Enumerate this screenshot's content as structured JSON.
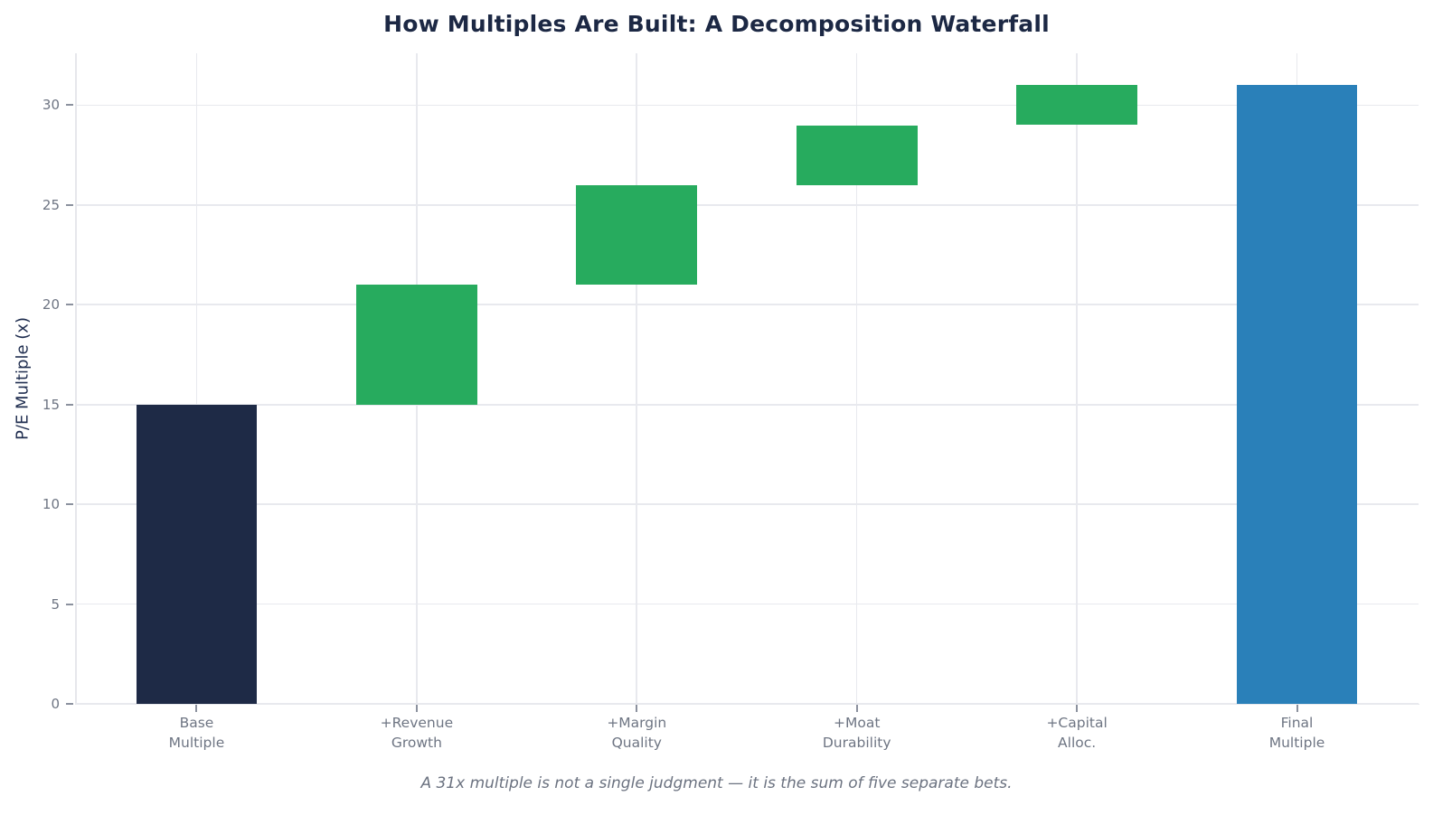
{
  "chart_data": {
    "type": "bar",
    "subtype": "waterfall",
    "title": "How Multiples Are Built: A Decomposition Waterfall",
    "ylabel": "P/E Multiple (x)",
    "xlabel": "",
    "caption": "A 31x multiple is not a single judgment — it is the sum of five separate bets.",
    "categories": [
      "Base\nMultiple",
      "+Revenue\nGrowth",
      "+Margin\nQuality",
      "+Moat\nDurability",
      "+Capital\nAlloc.",
      "Final\nMultiple"
    ],
    "bars": [
      {
        "label": "Base\nMultiple",
        "start": 0,
        "end": 15,
        "delta": 15,
        "role": "base"
      },
      {
        "label": "+Revenue\nGrowth",
        "start": 15,
        "end": 21,
        "delta": 6,
        "role": "increase"
      },
      {
        "label": "+Margin\nQuality",
        "start": 21,
        "end": 26,
        "delta": 5,
        "role": "increase"
      },
      {
        "label": "+Moat\nDurability",
        "start": 26,
        "end": 29,
        "delta": 3,
        "role": "increase"
      },
      {
        "label": "+Capital\nAlloc.",
        "start": 29,
        "end": 31,
        "delta": 2,
        "role": "increase"
      },
      {
        "label": "Final\nMultiple",
        "start": 0,
        "end": 31,
        "delta": 31,
        "role": "final"
      }
    ],
    "yticks": [
      0,
      5,
      10,
      15,
      20,
      25,
      30
    ],
    "ylim": [
      0,
      32.6
    ],
    "xlim": [
      -0.5525,
      5.5525
    ],
    "bar_width_units": 0.55,
    "grid": "both",
    "legend": null,
    "colors": {
      "base": "#1e2a46",
      "increase": "#27ab5e",
      "final": "#2a80b9",
      "title_text": "#1c2844",
      "axis_label_text": "#1f2d4f"
    }
  }
}
